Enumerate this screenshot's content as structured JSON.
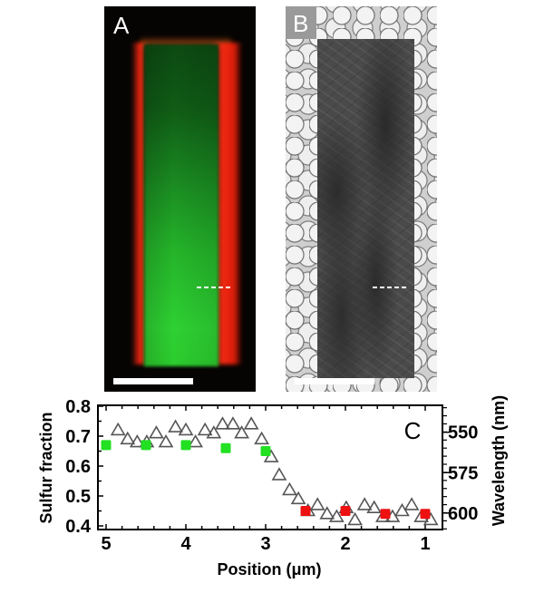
{
  "panels": {
    "a": {
      "label": "A",
      "description": "fluorescence micrograph of nanoribbon: green core, red edges",
      "colors": {
        "core": "#2ed133",
        "edge": "#ff3214",
        "background": "#060403"
      }
    },
    "b": {
      "label": "B",
      "description": "TEM image of nanoribbon on lacey carbon grid"
    }
  },
  "chart_data": {
    "type": "scatter",
    "panel_label": "C",
    "title": "",
    "xlabel": "Position (μm)",
    "ylabel": "Sulfur fraction",
    "y2label": "Wavelength (nm)",
    "xlim": [
      5.1,
      0.85
    ],
    "x_reversed": true,
    "ylim": [
      0.38,
      0.8
    ],
    "xticks": [
      5,
      4,
      3,
      2,
      1
    ],
    "yticks": [
      0.4,
      0.5,
      0.6,
      0.7,
      0.8
    ],
    "y2ticks": [
      {
        "label": "550",
        "y": 0.713
      },
      {
        "label": "575",
        "y": 0.578
      },
      {
        "label": "600",
        "y": 0.443
      }
    ],
    "grid": false,
    "series": [
      {
        "name": "Emission wavelength (triangles)",
        "marker": "open-triangle",
        "color": "#555555",
        "axis": "y2",
        "x": [
          4.85,
          4.73,
          4.61,
          4.49,
          4.37,
          4.25,
          4.13,
          4.0,
          3.88,
          3.76,
          3.65,
          3.54,
          3.41,
          3.3,
          3.18,
          3.05,
          2.93,
          2.83,
          2.7,
          2.59,
          2.47,
          2.35,
          2.23,
          2.11,
          1.99,
          1.88,
          1.76,
          1.64,
          1.53,
          1.41,
          1.29,
          1.17,
          1.05,
          0.93
        ],
        "values": [
          0.72,
          0.69,
          0.68,
          0.68,
          0.71,
          0.68,
          0.73,
          0.72,
          0.68,
          0.72,
          0.71,
          0.74,
          0.74,
          0.71,
          0.74,
          0.69,
          0.63,
          0.57,
          0.52,
          0.49,
          0.45,
          0.47,
          0.44,
          0.43,
          0.46,
          0.42,
          0.47,
          0.46,
          0.43,
          0.43,
          0.45,
          0.47,
          0.43,
          0.42
        ]
      },
      {
        "name": "Sulfur fraction (green region)",
        "marker": "filled-square",
        "color": "#22e022",
        "axis": "y",
        "x": [
          5,
          4.5,
          4,
          3.5,
          3
        ],
        "values": [
          0.67,
          0.67,
          0.67,
          0.66,
          0.65
        ]
      },
      {
        "name": "Sulfur fraction (red region)",
        "marker": "filled-square",
        "color": "#ee1111",
        "axis": "y",
        "x": [
          2.5,
          2,
          1.5,
          1
        ],
        "values": [
          0.45,
          0.45,
          0.44,
          0.44
        ]
      }
    ]
  }
}
